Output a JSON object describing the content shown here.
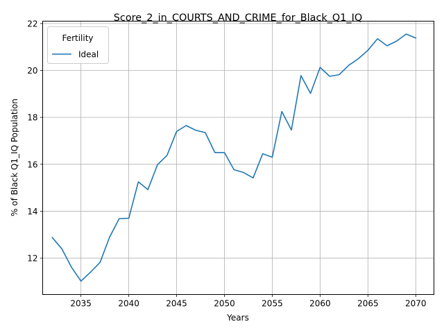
{
  "chart_data": {
    "type": "line",
    "title": "Score_2_in_COURTS_AND_CRIME_for_Black_Q1_IQ",
    "xlabel": "Years",
    "ylabel": "% of Black Q1_IQ Population",
    "xlim": [
      2031.0,
      2071.9
    ],
    "ylim": [
      10.45,
      22.1
    ],
    "x_ticks": [
      2035,
      2040,
      2045,
      2050,
      2055,
      2060,
      2065,
      2070
    ],
    "y_ticks": [
      12,
      14,
      16,
      18,
      20,
      22
    ],
    "grid": true,
    "legend": {
      "title": "Fertility",
      "position": "top-left"
    },
    "series": [
      {
        "name": "Ideal",
        "color": "#1f77b4",
        "x": [
          2032,
          2033,
          2034,
          2035,
          2036,
          2037,
          2038,
          2039,
          2040,
          2041,
          2042,
          2043,
          2044,
          2045,
          2046,
          2047,
          2048,
          2049,
          2050,
          2051,
          2052,
          2053,
          2054,
          2055,
          2056,
          2057,
          2058,
          2059,
          2060,
          2061,
          2062,
          2063,
          2064,
          2065,
          2066,
          2067,
          2068,
          2069,
          2070
        ],
        "y": [
          12.88,
          12.4,
          11.62,
          11.02,
          11.4,
          11.82,
          12.9,
          13.68,
          13.7,
          15.25,
          14.92,
          15.98,
          16.38,
          17.4,
          17.65,
          17.45,
          17.35,
          16.5,
          16.5,
          15.77,
          15.65,
          15.42,
          16.45,
          16.3,
          18.25,
          17.46,
          19.78,
          19.02,
          20.13,
          19.75,
          19.82,
          20.22,
          20.5,
          20.86,
          21.35,
          21.05,
          21.25,
          21.55,
          21.38
        ]
      }
    ]
  }
}
